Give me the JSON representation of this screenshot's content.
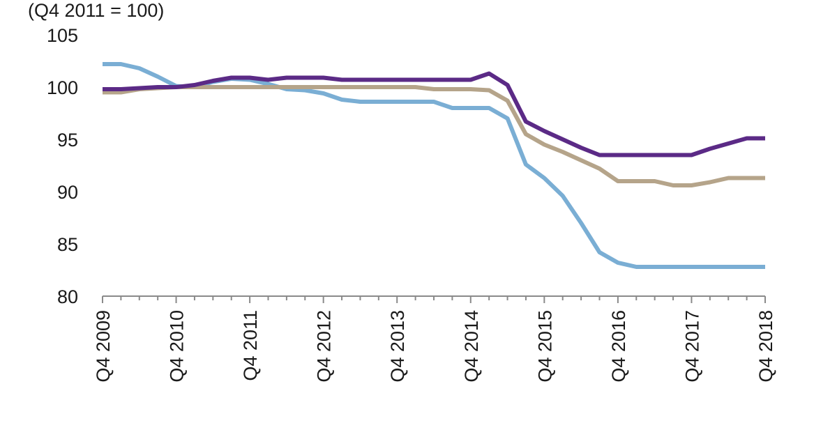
{
  "chart_data": {
    "type": "line",
    "title": "(Q4 2011 = 100)",
    "xlabel": "",
    "ylabel": "",
    "ylim": [
      80,
      105
    ],
    "yticks": [
      80,
      85,
      90,
      95,
      100,
      105
    ],
    "xtick_labels": [
      "Q4 2009",
      "Q4 2010",
      "Q4 2011",
      "Q4 2012",
      "Q4 2013",
      "Q4 2014",
      "Q4 2015",
      "Q4 2016",
      "Q4 2017",
      "Q4 2018"
    ],
    "x_frequency": "quarterly",
    "grid": false,
    "series": [
      {
        "color": "#5b2a86",
        "values": [
          99.8,
          99.8,
          99.9,
          100.0,
          100.0,
          100.2,
          100.6,
          100.9,
          100.9,
          100.7,
          100.9,
          100.9,
          100.9,
          100.7,
          100.7,
          100.7,
          100.7,
          100.7,
          100.7,
          100.7,
          100.7,
          101.3,
          100.2,
          96.7,
          95.8,
          95.0,
          94.2,
          93.5,
          93.5,
          93.5,
          93.5,
          93.5,
          93.5,
          94.1,
          94.6,
          95.1,
          95.1
        ]
      },
      {
        "color": "#b5a48a",
        "values": [
          99.5,
          99.5,
          99.8,
          99.9,
          100.0,
          100.0,
          100.0,
          100.0,
          100.0,
          100.0,
          100.0,
          100.0,
          100.0,
          100.0,
          100.0,
          100.0,
          100.0,
          100.0,
          99.8,
          99.8,
          99.8,
          99.7,
          98.7,
          95.5,
          94.5,
          93.8,
          93.0,
          92.2,
          91.0,
          91.0,
          91.0,
          90.6,
          90.6,
          90.9,
          91.3,
          91.3,
          91.3
        ]
      },
      {
        "color": "#7aaed4",
        "values": [
          102.2,
          102.2,
          101.8,
          101.0,
          100.1,
          100.0,
          100.5,
          100.8,
          100.7,
          100.3,
          99.8,
          99.7,
          99.4,
          98.8,
          98.6,
          98.6,
          98.6,
          98.6,
          98.6,
          98.0,
          98.0,
          98.0,
          97.0,
          92.6,
          91.3,
          89.6,
          87.0,
          84.2,
          83.2,
          82.8,
          82.8,
          82.8,
          82.8,
          82.8,
          82.8,
          82.8,
          82.8
        ]
      }
    ]
  }
}
